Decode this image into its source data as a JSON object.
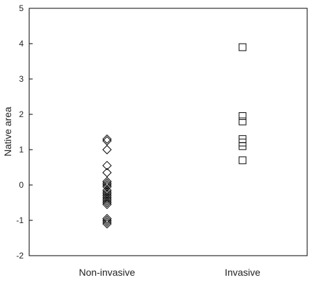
{
  "chart_data": {
    "type": "scatter",
    "title": "",
    "xlabel": "",
    "ylabel": "Native area",
    "ylim": [
      -2,
      5
    ],
    "yticks": [
      "-2",
      "-1",
      "0",
      "1",
      "2",
      "3",
      "4",
      "5"
    ],
    "grid": false,
    "categories": [
      "Non-invasive",
      "Invasive"
    ],
    "series": [
      {
        "category": "Non-invasive",
        "marker": "diamond",
        "values": [
          1.3,
          1.25,
          1.0,
          0.55,
          0.35,
          0.1,
          0.05,
          0.0,
          -0.05,
          -0.15,
          -0.2,
          -0.25,
          -0.3,
          -0.35,
          -0.4,
          -0.45,
          -0.5,
          -0.55,
          -0.95,
          -1.0,
          -1.05,
          -1.1
        ]
      },
      {
        "category": "Invasive",
        "marker": "square",
        "values": [
          3.9,
          1.95,
          1.8,
          1.3,
          1.2,
          1.1,
          0.7
        ]
      }
    ]
  }
}
